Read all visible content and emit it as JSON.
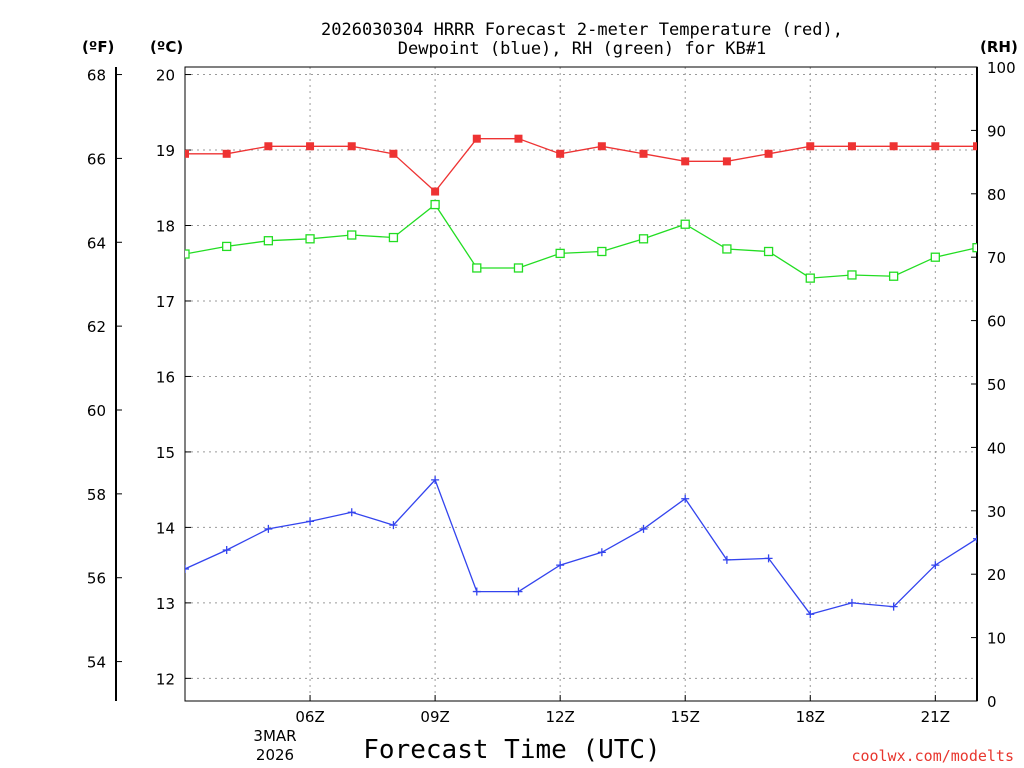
{
  "chart_data": {
    "type": "line",
    "title_line1": "2026030304 HRRR Forecast 2-meter Temperature (red),",
    "title_line2": "Dewpoint (blue), RH (green) for KB#1",
    "xlabel": "Forecast Time (UTC)",
    "unit_f": "(ºF)",
    "unit_c": "(ºC)",
    "unit_rh": "(RH)",
    "date_line1": "3MAR",
    "date_line2": "2026",
    "watermark": "coolwx.com/modelts",
    "x_hours": [
      3,
      4,
      5,
      6,
      7,
      8,
      9,
      10,
      11,
      12,
      13,
      14,
      15,
      16,
      17,
      18,
      19,
      20,
      21,
      22
    ],
    "x_ticks": [
      {
        "hour": 6,
        "label": "06Z"
      },
      {
        "hour": 9,
        "label": "09Z"
      },
      {
        "hour": 12,
        "label": "12Z"
      },
      {
        "hour": 15,
        "label": "15Z"
      },
      {
        "hour": 18,
        "label": "18Z"
      },
      {
        "hour": 21,
        "label": "21Z"
      }
    ],
    "xlim": [
      3,
      22
    ],
    "ylim_c": [
      11.7,
      20.1
    ],
    "ylim_rh": [
      0,
      100
    ],
    "y_ticks_c": [
      12,
      13,
      14,
      15,
      16,
      17,
      18,
      19,
      20
    ],
    "y_ticks_f": [
      54,
      56,
      58,
      60,
      62,
      64,
      66,
      68
    ],
    "y_ticks_rh": [
      0,
      10,
      20,
      30,
      40,
      50,
      60,
      70,
      80,
      90,
      100
    ],
    "series": [
      {
        "name": "Temperature",
        "axis": "c",
        "color": "#ee3333",
        "marker": "filled-square",
        "values": [
          18.95,
          18.95,
          19.05,
          19.05,
          19.05,
          18.95,
          18.45,
          19.15,
          19.15,
          18.95,
          19.05,
          18.95,
          18.85,
          18.85,
          18.95,
          19.05,
          19.05,
          19.05,
          19.05,
          19.05
        ]
      },
      {
        "name": "Dewpoint",
        "axis": "c",
        "color": "#3344ee",
        "marker": "plus",
        "values": [
          13.45,
          13.7,
          13.98,
          14.08,
          14.2,
          14.03,
          14.63,
          13.15,
          13.15,
          13.5,
          13.67,
          13.98,
          14.38,
          13.57,
          13.59,
          12.85,
          13.0,
          12.95,
          13.5,
          13.85
        ]
      },
      {
        "name": "RH",
        "axis": "rh",
        "color": "#22dd22",
        "marker": "open-square",
        "values": [
          70.5,
          71.7,
          72.6,
          72.9,
          73.5,
          73.1,
          78.3,
          68.3,
          68.3,
          70.6,
          70.9,
          72.9,
          75.2,
          71.3,
          70.9,
          66.7,
          67.2,
          67.0,
          70.0,
          71.5
        ]
      }
    ]
  }
}
